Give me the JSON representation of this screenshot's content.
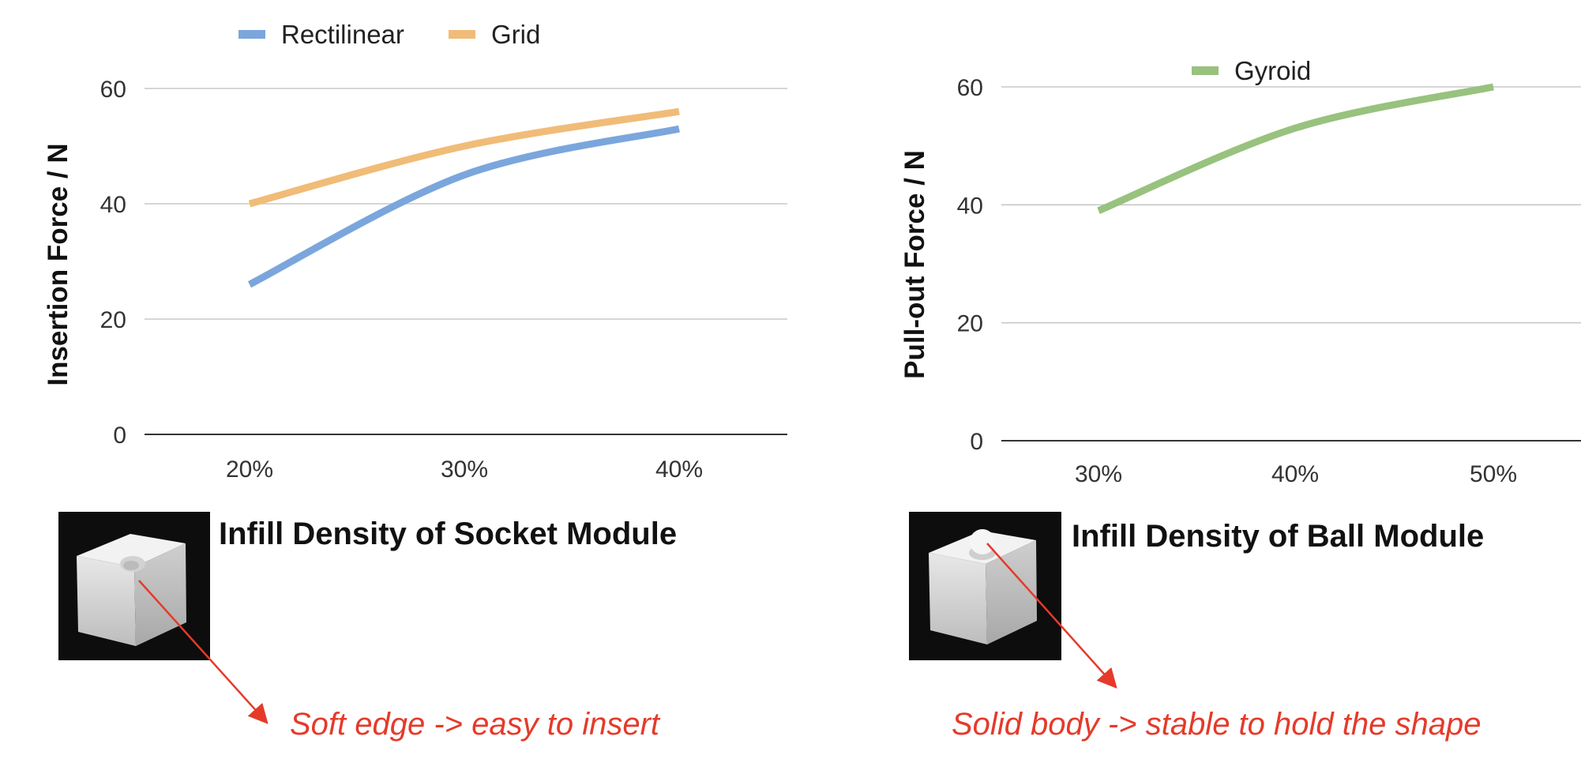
{
  "chart_data": [
    {
      "type": "line",
      "title": "",
      "xlabel": "Infill Density of Socket Module",
      "ylabel": "Insertion Force / N",
      "categories": [
        "20%",
        "30%",
        "40%"
      ],
      "series": [
        {
          "name": "Rectilinear",
          "color": "#7ba6dc",
          "values": [
            26,
            45,
            53
          ]
        },
        {
          "name": "Grid",
          "color": "#f0bc78",
          "values": [
            40,
            50,
            56
          ]
        }
      ],
      "ylim": [
        0,
        60
      ],
      "yticks": [
        0,
        20,
        40,
        60
      ],
      "grid": true,
      "legend": "top",
      "annotation": "Soft edge -> easy to insert",
      "photo_icon": "socket-cube-photo"
    },
    {
      "type": "line",
      "title": "",
      "xlabel": "Infill Density of Ball Module",
      "ylabel": "Pull-out Force / N",
      "categories": [
        "30%",
        "40%",
        "50%"
      ],
      "series": [
        {
          "name": "Gyroid",
          "color": "#98c27e",
          "values": [
            39,
            53,
            60
          ]
        }
      ],
      "ylim": [
        0,
        60
      ],
      "yticks": [
        0,
        20,
        40,
        60
      ],
      "grid": true,
      "legend": "top",
      "annotation": "Solid body -> stable to hold the shape",
      "photo_icon": "ball-cube-photo"
    }
  ]
}
